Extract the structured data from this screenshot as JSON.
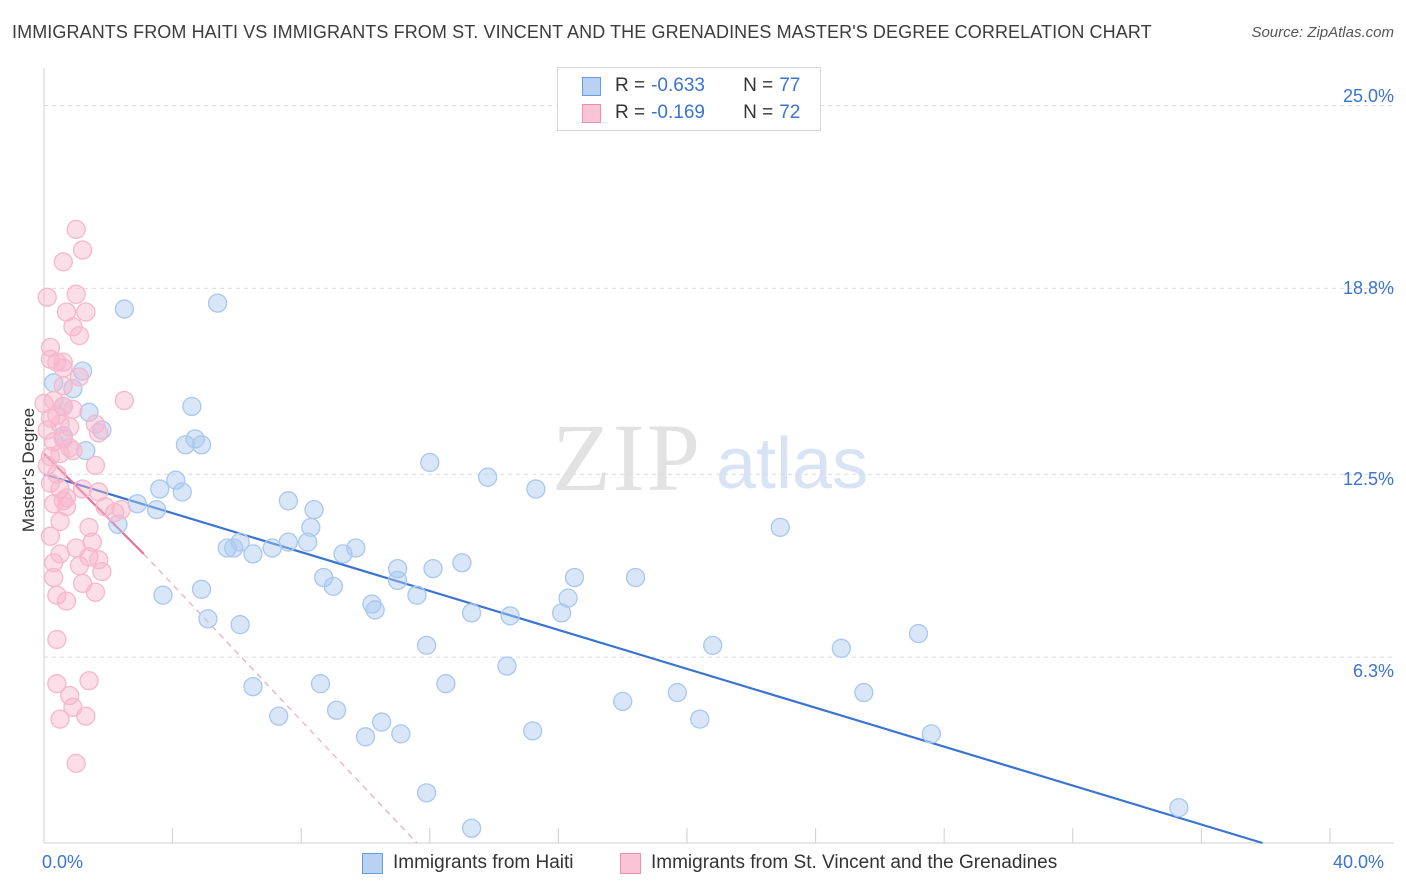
{
  "title": "IMMIGRANTS FROM HAITI VS IMMIGRANTS FROM ST. VINCENT AND THE GRENADINES MASTER'S DEGREE CORRELATION CHART",
  "source": "Source: ZipAtlas.com",
  "watermark": {
    "zip": "ZIP",
    "atlas": "atlas"
  },
  "legend": {
    "rows": [
      {
        "r_label": "R = ",
        "r_value": "-0.633",
        "n_label": "N = ",
        "n_value": "77"
      },
      {
        "r_label": "R = ",
        "r_value": "-0.169",
        "n_label": "N = ",
        "n_value": "72"
      }
    ]
  },
  "chart_data": {
    "type": "scatter",
    "title": "IMMIGRANTS FROM HAITI VS IMMIGRANTS FROM ST. VINCENT AND THE GRENADINES MASTER'S DEGREE CORRELATION CHART",
    "xlabel": "",
    "ylabel": "Master's Degree",
    "xlim": [
      0,
      40
    ],
    "ylim": [
      0,
      26
    ],
    "x_tick_labels": [
      "0.0%",
      "40.0%"
    ],
    "y_ticks": [
      6.3,
      12.5,
      18.8,
      25.0
    ],
    "y_tick_labels": [
      "6.3%",
      "12.5%",
      "18.8%",
      "25.0%"
    ],
    "grid": true,
    "legend_position": "bottom",
    "series": [
      {
        "name": "Immigrants from Haiti",
        "color": "#3a74d0",
        "fill": "#a9c7ef",
        "trend": {
          "x": [
            0.0,
            37.9
          ],
          "y": [
            12.5,
            0.0
          ]
        },
        "points": [
          [
            0.3,
            15.6
          ],
          [
            0.6,
            14.8
          ],
          [
            0.9,
            15.4
          ],
          [
            1.2,
            16.0
          ],
          [
            0.6,
            13.8
          ],
          [
            1.3,
            13.3
          ],
          [
            1.4,
            14.6
          ],
          [
            1.8,
            14.0
          ],
          [
            2.5,
            18.1
          ],
          [
            5.4,
            18.3
          ],
          [
            3.6,
            12.0
          ],
          [
            4.1,
            12.3
          ],
          [
            4.3,
            11.9
          ],
          [
            4.4,
            13.5
          ],
          [
            4.6,
            14.8
          ],
          [
            4.7,
            13.7
          ],
          [
            2.3,
            10.8
          ],
          [
            2.9,
            11.5
          ],
          [
            3.5,
            11.3
          ],
          [
            3.7,
            8.4
          ],
          [
            4.9,
            8.6
          ],
          [
            5.1,
            7.6
          ],
          [
            5.9,
            10.0
          ],
          [
            6.1,
            10.2
          ],
          [
            5.7,
            10.0
          ],
          [
            6.5,
            9.8
          ],
          [
            7.1,
            10.0
          ],
          [
            7.6,
            10.2
          ],
          [
            7.6,
            11.6
          ],
          [
            8.2,
            10.2
          ],
          [
            8.3,
            10.7
          ],
          [
            8.7,
            9.0
          ],
          [
            9.0,
            8.7
          ],
          [
            9.3,
            9.8
          ],
          [
            9.7,
            10.0
          ],
          [
            10.3,
            7.9
          ],
          [
            11.0,
            9.3
          ],
          [
            10.2,
            8.1
          ],
          [
            11.0,
            8.9
          ],
          [
            12.0,
            12.9
          ],
          [
            11.6,
            8.4
          ],
          [
            11.9,
            6.7
          ],
          [
            12.1,
            9.3
          ],
          [
            13.0,
            9.5
          ],
          [
            13.3,
            7.8
          ],
          [
            13.8,
            12.4
          ],
          [
            14.5,
            7.7
          ],
          [
            14.4,
            6.0
          ],
          [
            15.3,
            12.0
          ],
          [
            16.1,
            7.8
          ],
          [
            16.3,
            8.3
          ],
          [
            16.5,
            9.0
          ],
          [
            18.0,
            4.8
          ],
          [
            18.4,
            9.0
          ],
          [
            19.7,
            5.1
          ],
          [
            20.4,
            4.2
          ],
          [
            20.8,
            6.7
          ],
          [
            22.9,
            10.7
          ],
          [
            24.8,
            6.6
          ],
          [
            25.5,
            5.1
          ],
          [
            27.2,
            7.1
          ],
          [
            27.6,
            3.7
          ],
          [
            8.6,
            5.4
          ],
          [
            9.1,
            4.5
          ],
          [
            10.0,
            3.6
          ],
          [
            10.5,
            4.1
          ],
          [
            11.1,
            3.7
          ],
          [
            12.5,
            5.4
          ],
          [
            15.2,
            3.8
          ],
          [
            6.5,
            5.3
          ],
          [
            7.3,
            4.3
          ],
          [
            6.1,
            7.4
          ],
          [
            11.9,
            1.7
          ],
          [
            13.3,
            0.5
          ],
          [
            35.3,
            1.2
          ],
          [
            4.9,
            13.5
          ],
          [
            8.4,
            11.3
          ]
        ]
      },
      {
        "name": "Immigrants from St. Vincent and the Grenadines",
        "color": "#e8709a",
        "fill": "#f7b6cb",
        "trend": {
          "x": [
            0.0,
            3.1
          ],
          "y": [
            13.2,
            9.8
          ]
        },
        "trend_extension": {
          "x": [
            3.1,
            11.6
          ],
          "y": [
            9.8,
            0.0
          ]
        },
        "points": [
          [
            1.0,
            20.8
          ],
          [
            1.2,
            20.1
          ],
          [
            0.6,
            19.7
          ],
          [
            0.1,
            18.5
          ],
          [
            1.0,
            18.6
          ],
          [
            0.7,
            18.0
          ],
          [
            1.3,
            18.0
          ],
          [
            1.1,
            17.2
          ],
          [
            0.2,
            16.8
          ],
          [
            0.2,
            16.4
          ],
          [
            0.4,
            16.3
          ],
          [
            0.6,
            16.1
          ],
          [
            1.1,
            15.8
          ],
          [
            0.0,
            14.9
          ],
          [
            0.3,
            15.0
          ],
          [
            0.6,
            14.8
          ],
          [
            0.2,
            14.4
          ],
          [
            0.5,
            14.2
          ],
          [
            0.8,
            14.1
          ],
          [
            1.6,
            14.2
          ],
          [
            2.5,
            15.0
          ],
          [
            0.1,
            14.0
          ],
          [
            0.3,
            13.6
          ],
          [
            0.6,
            13.7
          ],
          [
            0.9,
            13.3
          ],
          [
            0.5,
            13.2
          ],
          [
            1.6,
            12.8
          ],
          [
            0.2,
            12.2
          ],
          [
            0.5,
            12.0
          ],
          [
            0.7,
            11.7
          ],
          [
            0.3,
            11.5
          ],
          [
            0.6,
            11.6
          ],
          [
            1.7,
            11.9
          ],
          [
            2.4,
            11.3
          ],
          [
            1.4,
            10.7
          ],
          [
            0.2,
            10.4
          ],
          [
            0.5,
            9.8
          ],
          [
            0.3,
            9.5
          ],
          [
            1.4,
            9.7
          ],
          [
            1.1,
            9.4
          ],
          [
            1.7,
            9.6
          ],
          [
            1.8,
            9.2
          ],
          [
            0.4,
            8.4
          ],
          [
            0.7,
            8.2
          ],
          [
            1.6,
            8.5
          ],
          [
            0.4,
            6.9
          ],
          [
            0.4,
            5.4
          ],
          [
            1.4,
            5.5
          ],
          [
            0.8,
            5.0
          ],
          [
            1.3,
            4.3
          ],
          [
            0.5,
            4.2
          ],
          [
            0.9,
            4.6
          ],
          [
            1.0,
            2.7
          ],
          [
            1.9,
            11.4
          ],
          [
            0.4,
            12.5
          ],
          [
            0.8,
            13.4
          ],
          [
            1.2,
            12.0
          ],
          [
            0.6,
            16.3
          ],
          [
            0.9,
            14.7
          ],
          [
            0.2,
            13.1
          ],
          [
            1.5,
            10.2
          ],
          [
            0.7,
            11.4
          ],
          [
            0.3,
            9.0
          ],
          [
            1.2,
            8.8
          ],
          [
            0.6,
            15.5
          ],
          [
            0.9,
            17.5
          ],
          [
            0.4,
            14.5
          ],
          [
            0.1,
            12.8
          ],
          [
            2.2,
            11.2
          ],
          [
            1.0,
            10.0
          ],
          [
            0.5,
            10.9
          ],
          [
            1.7,
            13.9
          ]
        ]
      }
    ]
  }
}
